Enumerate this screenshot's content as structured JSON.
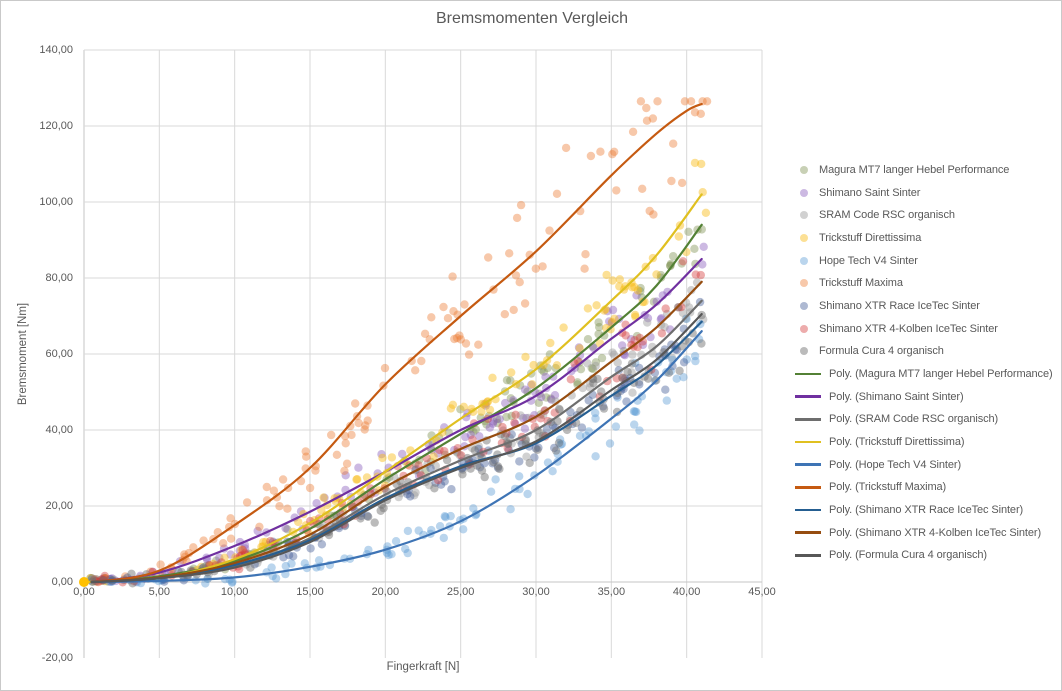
{
  "chart_data": {
    "type": "scatter",
    "title": "Bremsmomenten Vergleich",
    "xlabel": "Fingerkraft [N]",
    "ylabel": "Bremsmoment [Nm]",
    "xlim": [
      0,
      45
    ],
    "ylim": [
      -20,
      140
    ],
    "grid": true,
    "legend_position": "right",
    "x_ticks": [
      {
        "value": 0,
        "label": "0,00"
      },
      {
        "value": 5,
        "label": "5,00"
      },
      {
        "value": 10,
        "label": "10,00"
      },
      {
        "value": 15,
        "label": "15,00"
      },
      {
        "value": 20,
        "label": "20,00"
      },
      {
        "value": 25,
        "label": "25,00"
      },
      {
        "value": 30,
        "label": "30,00"
      },
      {
        "value": 35,
        "label": "35,00"
      },
      {
        "value": 40,
        "label": "40,00"
      },
      {
        "value": 45,
        "label": "45,00"
      }
    ],
    "y_ticks": [
      {
        "value": 140,
        "label": "140,00"
      },
      {
        "value": 120,
        "label": "120,00"
      },
      {
        "value": 100,
        "label": "100,00"
      },
      {
        "value": 80,
        "label": "80,00"
      },
      {
        "value": 60,
        "label": "60,00"
      },
      {
        "value": 40,
        "label": "40,00"
      },
      {
        "value": 20,
        "label": "20,00"
      },
      {
        "value": 0,
        "label": "0,00"
      },
      {
        "value": -20,
        "label": "-20,00"
      }
    ],
    "origin_marker": {
      "x": 0,
      "y": 0,
      "color": "#ffc000",
      "radius": 5
    },
    "series": [
      {
        "name": "Magura MT7 langer Hebel Performance",
        "poly_label": "Poly. (Magura MT7 langer Hebel Performance)",
        "point_color": "rgba(125,142,78,0.42)",
        "line_color": "#538135",
        "trend_points": [
          [
            0.5,
            0
          ],
          [
            5,
            1.5
          ],
          [
            10,
            5.5
          ],
          [
            15,
            14
          ],
          [
            20,
            27
          ],
          [
            25,
            39
          ],
          [
            30,
            51
          ],
          [
            35,
            67
          ],
          [
            38,
            78
          ],
          [
            41,
            94
          ]
        ],
        "scatter": {
          "seed": 11,
          "count": 100,
          "x_min": 1.5,
          "x_max": 41.2,
          "x_power": 0.7,
          "rel_spread": 0.14,
          "abs_spread": 1.6,
          "y_cap": null,
          "origin_points": 4
        }
      },
      {
        "name": "Shimano Saint Sinter",
        "poly_label": "Poly. (Shimano Saint Sinter)",
        "point_color": "rgba(133,88,185,0.42)",
        "line_color": "#7030a0",
        "trend_points": [
          [
            0.5,
            0
          ],
          [
            5,
            2.5
          ],
          [
            10,
            9.5
          ],
          [
            15,
            18.5
          ],
          [
            20,
            29
          ],
          [
            25,
            40
          ],
          [
            30,
            49
          ],
          [
            35,
            64
          ],
          [
            38,
            73
          ],
          [
            41,
            85
          ]
        ],
        "scatter": {
          "seed": 22,
          "count": 100,
          "x_min": 1.2,
          "x_max": 41.2,
          "x_power": 0.7,
          "rel_spread": 0.15,
          "abs_spread": 1.8,
          "y_cap": null,
          "origin_points": 4
        }
      },
      {
        "name": "SRAM Code RSC organisch",
        "poly_label": "Poly. (SRAM Code RSC organisch)",
        "point_color": "rgba(158,158,158,0.48)",
        "line_color": "#6e6e6e",
        "trend_points": [
          [
            0.5,
            0
          ],
          [
            5,
            1
          ],
          [
            10,
            4
          ],
          [
            15,
            11.5
          ],
          [
            20,
            23
          ],
          [
            25,
            32
          ],
          [
            30,
            40
          ],
          [
            35,
            54
          ],
          [
            38,
            62
          ],
          [
            41,
            74
          ]
        ],
        "scatter": {
          "seed": 33,
          "count": 100,
          "x_min": 1.5,
          "x_max": 41.2,
          "x_power": 0.7,
          "rel_spread": 0.15,
          "abs_spread": 1.8,
          "y_cap": null,
          "origin_points": 4
        }
      },
      {
        "name": "Trickstuff Direttissima",
        "poly_label": "Poly. (Trickstuff Direttissima)",
        "point_color": "rgba(248,186,20,0.45)",
        "line_color": "#e0c020",
        "trend_points": [
          [
            0,
            0
          ],
          [
            5,
            1
          ],
          [
            10,
            6
          ],
          [
            15,
            15.5
          ],
          [
            20,
            29
          ],
          [
            25,
            43
          ],
          [
            30,
            56
          ],
          [
            35,
            74
          ],
          [
            38,
            86
          ],
          [
            41,
            102
          ]
        ],
        "scatter": {
          "seed": 44,
          "count": 100,
          "x_min": 1.2,
          "x_max": 41.3,
          "x_power": 0.7,
          "rel_spread": 0.14,
          "abs_spread": 2,
          "y_cap": null,
          "origin_points": 4
        }
      },
      {
        "name": "Hope Tech V4 Sinter",
        "poly_label": "Poly. (Hope Tech V4 Sinter)",
        "point_color": "rgba(91,155,213,0.42)",
        "line_color": "#3e74b5",
        "trend_points": [
          [
            0.5,
            0
          ],
          [
            5,
            0.3
          ],
          [
            10,
            1.2
          ],
          [
            15,
            4
          ],
          [
            20,
            8.5
          ],
          [
            25,
            16
          ],
          [
            30,
            28
          ],
          [
            35,
            43
          ],
          [
            38,
            53
          ],
          [
            41,
            66
          ]
        ],
        "scatter": {
          "seed": 55,
          "count": 105,
          "x_min": 1.2,
          "x_max": 41.3,
          "x_power": 0.7,
          "rel_spread": 0.2,
          "abs_spread": 1.5,
          "y_cap": null,
          "origin_points": 4
        }
      },
      {
        "name": "Trickstuff Maxima",
        "poly_label": "Poly. (Trickstuff Maxima)",
        "point_color": "rgba(235,125,52,0.42)",
        "line_color": "#c55a11",
        "trend_points": [
          [
            0.5,
            0
          ],
          [
            5,
            3
          ],
          [
            10,
            15
          ],
          [
            15,
            30
          ],
          [
            20,
            52
          ],
          [
            25,
            70
          ],
          [
            30,
            87
          ],
          [
            35,
            107
          ],
          [
            38,
            118
          ],
          [
            40,
            124
          ],
          [
            41,
            125.8
          ]
        ],
        "scatter": {
          "seed": 66,
          "count": 115,
          "x_min": 1.2,
          "x_max": 41.5,
          "x_power": 0.7,
          "rel_spread": 0.2,
          "abs_spread": 3,
          "y_cap": 126.5,
          "origin_points": 4
        }
      },
      {
        "name": "Shimano XTR Race IceTec Sinter",
        "poly_label": "Poly. (Shimano XTR Race IceTec Sinter)",
        "point_color": "rgba(62,88,148,0.42)",
        "line_color": "#255e91",
        "trend_points": [
          [
            0.5,
            0
          ],
          [
            5,
            1
          ],
          [
            10,
            4.5
          ],
          [
            15,
            11
          ],
          [
            20,
            22
          ],
          [
            25,
            30.5
          ],
          [
            30,
            36.5
          ],
          [
            35,
            49
          ],
          [
            38,
            57
          ],
          [
            41,
            68.5
          ]
        ],
        "scatter": {
          "seed": 77,
          "count": 100,
          "x_min": 1.5,
          "x_max": 41.2,
          "x_power": 0.7,
          "rel_spread": 0.15,
          "abs_spread": 1.8,
          "y_cap": null,
          "origin_points": 4
        }
      },
      {
        "name": "Shimano XTR 4-Kolben IceTec Sinter",
        "poly_label": "Poly. (Shimano XTR 4-Kolben IceTec Sinter)",
        "point_color": "rgba(212,58,58,0.42)",
        "line_color": "#964d10",
        "trend_points": [
          [
            0.5,
            0
          ],
          [
            5,
            1.2
          ],
          [
            10,
            5
          ],
          [
            15,
            12.5
          ],
          [
            20,
            25
          ],
          [
            25,
            35
          ],
          [
            30,
            43.5
          ],
          [
            35,
            58
          ],
          [
            38,
            67
          ],
          [
            41,
            79
          ]
        ],
        "scatter": {
          "seed": 88,
          "count": 100,
          "x_min": 1.2,
          "x_max": 41.2,
          "x_power": 0.7,
          "rel_spread": 0.16,
          "abs_spread": 2,
          "y_cap": null,
          "origin_points": 4
        }
      },
      {
        "name": "Formula Cura 4 organisch",
        "poly_label": "Poly. (Formula Cura 4 organisch)",
        "point_color": "rgba(112,112,112,0.48)",
        "line_color": "#575757",
        "trend_points": [
          [
            0.5,
            0
          ],
          [
            5,
            1
          ],
          [
            10,
            3.8
          ],
          [
            15,
            10.5
          ],
          [
            20,
            21.5
          ],
          [
            25,
            30
          ],
          [
            30,
            37
          ],
          [
            35,
            50.5
          ],
          [
            38,
            58.5
          ],
          [
            41,
            70.5
          ]
        ],
        "scatter": {
          "seed": 99,
          "count": 100,
          "x_min": 1.5,
          "x_max": 41.2,
          "x_power": 0.7,
          "rel_spread": 0.15,
          "abs_spread": 1.8,
          "y_cap": null,
          "origin_points": 4
        }
      }
    ]
  },
  "style": {
    "text_color": "#595959",
    "gridline_color": "#d9d9d9",
    "axis_line_color": "#c6c6c6",
    "background": "#ffffff",
    "border_color": "#c9c9c9"
  }
}
